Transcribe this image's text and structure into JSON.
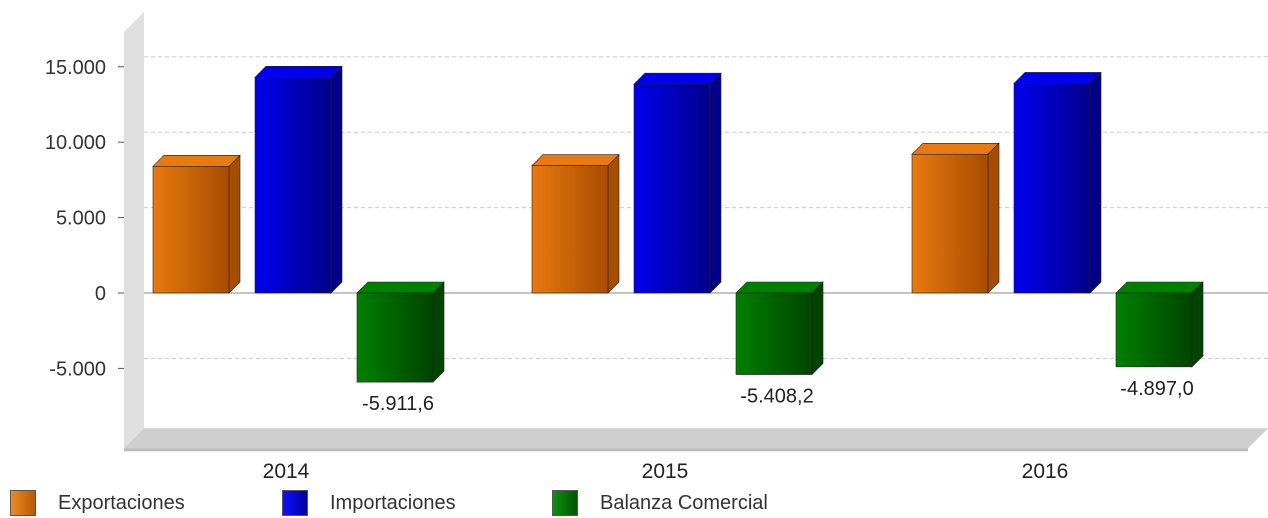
{
  "chart_data": {
    "type": "bar",
    "categories": [
      "2014",
      "2015",
      "2016"
    ],
    "series": [
      {
        "name": "Exportaciones",
        "values": [
          8400,
          8450,
          9200
        ],
        "color": "#e87a0f",
        "dark": "#a84c00"
      },
      {
        "name": "Importaciones",
        "values": [
          14300,
          13850,
          13900
        ],
        "color": "#0000ee",
        "dark": "#00008a"
      },
      {
        "name": "Balanza Comercial",
        "values": [
          -5911.6,
          -5408.2,
          -4897.0
        ],
        "color": "#008000",
        "dark": "#004400"
      }
    ],
    "data_labels": [
      "-5.911,6",
      "-5.408,2",
      "-4.897,0"
    ],
    "y_ticks": [
      {
        "value": 15000,
        "label": "15.000"
      },
      {
        "value": 10000,
        "label": "10.000"
      },
      {
        "value": 5000,
        "label": "5.000"
      },
      {
        "value": 0,
        "label": "0"
      },
      {
        "value": -5000,
        "label": "-5.000"
      }
    ],
    "ylim": [
      -9500,
      17000
    ],
    "grid": true,
    "legend_position": "bottom-left",
    "title": "",
    "xlabel": "",
    "ylabel": ""
  }
}
